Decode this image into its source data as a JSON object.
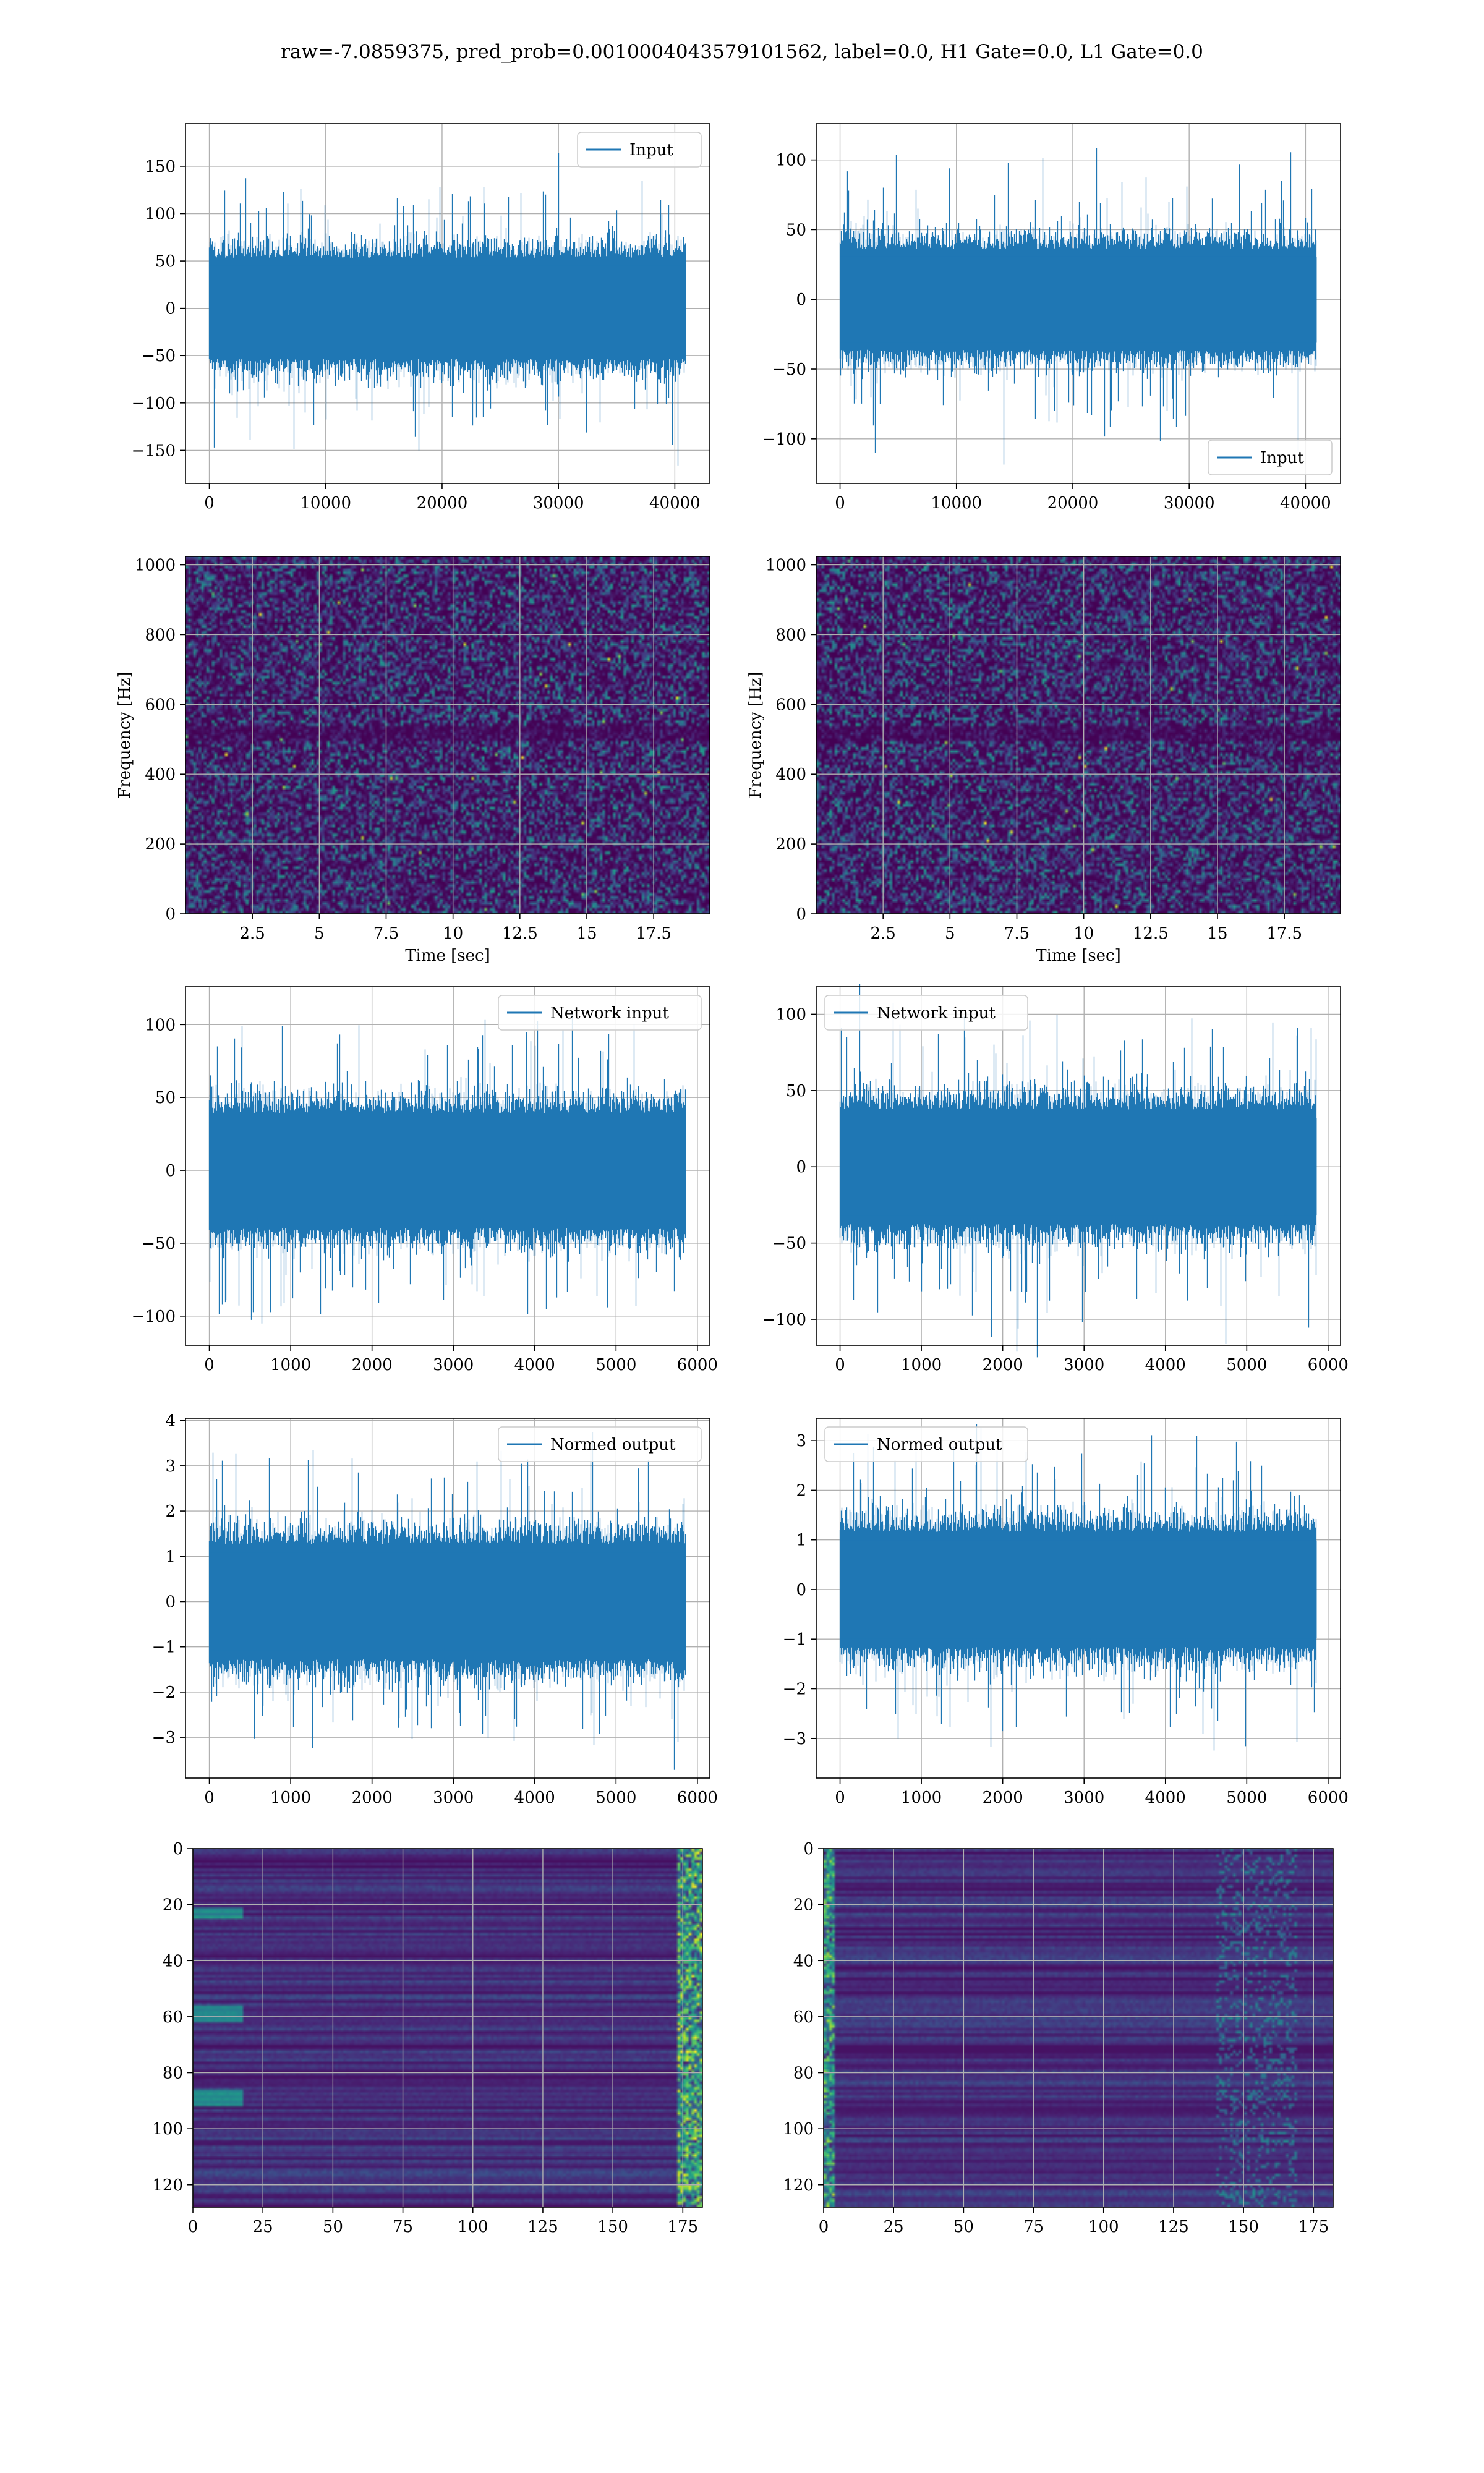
{
  "figure": {
    "title": "raw=-7.0859375, pred_prob=0.0010004043579101562, label=0.0, H1 Gate=0.0, L1 Gate=0.0",
    "line_color": "#1f77b4",
    "grid_color": "#b0b0b0"
  },
  "chart_data": [
    {
      "id": "input-h1",
      "type": "line",
      "title": "",
      "xlabel": "",
      "ylabel": "",
      "series": [
        {
          "name": "Input",
          "amplitude": "approx ±75, peaks 176 / -170",
          "n_points": 40960
        }
      ],
      "xlim": [
        -2048,
        43008
      ],
      "ylim": [
        -185,
        195
      ],
      "xticks": [
        0,
        10000,
        20000,
        30000,
        40000
      ],
      "yticks": [
        -150,
        -100,
        -50,
        0,
        50,
        100,
        150
      ],
      "legend": "upper right",
      "grid": true
    },
    {
      "id": "input-l1",
      "type": "line",
      "title": "",
      "xlabel": "",
      "ylabel": "",
      "series": [
        {
          "name": "Input",
          "amplitude": "approx ±60, peaks 115 / -122",
          "n_points": 40960
        }
      ],
      "xlim": [
        -2048,
        43008
      ],
      "ylim": [
        -132,
        126
      ],
      "xticks": [
        0,
        10000,
        20000,
        30000,
        40000
      ],
      "yticks": [
        -100,
        -50,
        0,
        50,
        100
      ],
      "legend": "lower right",
      "grid": true
    },
    {
      "id": "spectrogram-h1",
      "type": "heatmap",
      "title": "",
      "xlabel": "Time [sec]",
      "ylabel": "Frequency [Hz]",
      "xlim": [
        0,
        19.6
      ],
      "ylim": [
        0,
        1024
      ],
      "xticks": [
        2.5,
        5.0,
        7.5,
        10.0,
        12.5,
        15.0,
        17.5
      ],
      "yticks": [
        0,
        200,
        400,
        600,
        800,
        1000
      ],
      "colormap": "viridis",
      "grid": true
    },
    {
      "id": "spectrogram-l1",
      "type": "heatmap",
      "title": "",
      "xlabel": "Time [sec]",
      "ylabel": "Frequency [Hz]",
      "xlim": [
        0,
        19.6
      ],
      "ylim": [
        0,
        1024
      ],
      "xticks": [
        2.5,
        5.0,
        7.5,
        10.0,
        12.5,
        15.0,
        17.5
      ],
      "yticks": [
        0,
        200,
        400,
        600,
        800,
        1000
      ],
      "colormap": "viridis",
      "grid": true
    },
    {
      "id": "network-input-h1",
      "type": "line",
      "title": "",
      "xlabel": "",
      "ylabel": "",
      "series": [
        {
          "name": "Network input",
          "amplitude": "approx ±50, peaks 114 / -107",
          "n_points": 5860
        }
      ],
      "xlim": [
        -293,
        6153
      ],
      "ylim": [
        -120,
        126
      ],
      "xticks": [
        0,
        1000,
        2000,
        3000,
        4000,
        5000,
        6000
      ],
      "yticks": [
        -100,
        -50,
        0,
        50,
        100
      ],
      "legend": "upper right",
      "grid": true
    },
    {
      "id": "network-input-l1",
      "type": "line",
      "title": "",
      "xlabel": "",
      "ylabel": "",
      "series": [
        {
          "name": "Network input",
          "amplitude": "approx ±50, peaks 107 / -110",
          "n_points": 5860
        }
      ],
      "xlim": [
        -293,
        6153
      ],
      "ylim": [
        -117,
        118
      ],
      "xticks": [
        0,
        1000,
        2000,
        3000,
        4000,
        5000,
        6000
      ],
      "yticks": [
        -100,
        -50,
        0,
        50,
        100
      ],
      "legend": "upper left",
      "grid": true
    },
    {
      "id": "normed-output-h1",
      "type": "line",
      "title": "",
      "xlabel": "",
      "ylabel": "",
      "series": [
        {
          "name": "Normed output",
          "amplitude": "approx ±1.7, peaks 3.7 / -3.5",
          "n_points": 5860
        }
      ],
      "xlim": [
        -293,
        6153
      ],
      "ylim": [
        -3.9,
        4.05
      ],
      "xticks": [
        0,
        1000,
        2000,
        3000,
        4000,
        5000,
        6000
      ],
      "yticks": [
        -3,
        -2,
        -1,
        0,
        1,
        2,
        3,
        4
      ],
      "legend": "upper right",
      "grid": true
    },
    {
      "id": "normed-output-l1",
      "type": "line",
      "title": "",
      "xlabel": "",
      "ylabel": "",
      "series": [
        {
          "name": "Normed output",
          "amplitude": "approx ±1.6, peaks 3.5 / -3.5",
          "n_points": 5860
        }
      ],
      "xlim": [
        -293,
        6153
      ],
      "ylim": [
        -3.8,
        3.45
      ],
      "xticks": [
        0,
        1000,
        2000,
        3000,
        4000,
        5000,
        6000
      ],
      "yticks": [
        -3,
        -2,
        -1,
        0,
        1,
        2,
        3
      ],
      "legend": "upper left",
      "grid": true
    },
    {
      "id": "features-h1",
      "type": "heatmap",
      "title": "",
      "xlabel": "",
      "ylabel": "",
      "rows": 128,
      "cols": 183,
      "xlim": [
        0,
        182
      ],
      "ylim": [
        128,
        0
      ],
      "xticks": [
        0,
        25,
        50,
        75,
        100,
        125,
        150,
        175
      ],
      "yticks": [
        0,
        20,
        40,
        60,
        80,
        100,
        120
      ],
      "colormap": "viridis",
      "grid": true
    },
    {
      "id": "features-l1",
      "type": "heatmap",
      "title": "",
      "xlabel": "",
      "ylabel": "",
      "rows": 128,
      "cols": 183,
      "xlim": [
        0,
        182
      ],
      "ylim": [
        128,
        0
      ],
      "xticks": [
        0,
        25,
        50,
        75,
        100,
        125,
        150,
        175
      ],
      "yticks": [
        0,
        20,
        40,
        60,
        80,
        100,
        120
      ],
      "colormap": "viridis",
      "grid": true
    }
  ]
}
